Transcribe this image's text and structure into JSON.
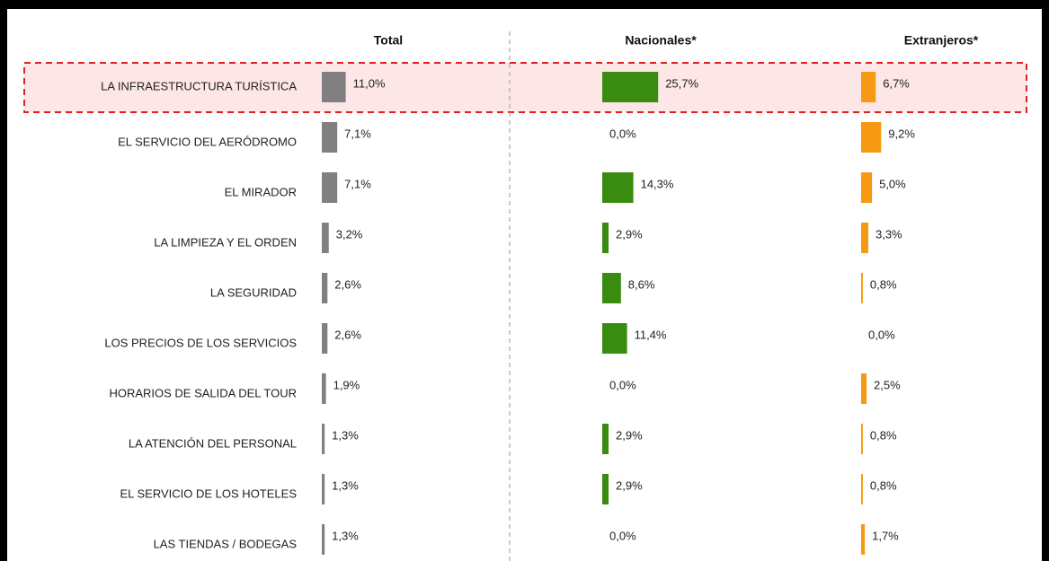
{
  "chart_data": {
    "type": "bar",
    "categories": [
      "LA INFRAESTRUCTURA TURÍSTICA",
      "EL SERVICIO DEL AERÓDROMO",
      "EL MIRADOR",
      "LA LIMPIEZA Y EL ORDEN",
      "LA SEGURIDAD",
      "LOS PRECIOS DE LOS SERVICIOS",
      "HORARIOS DE SALIDA DEL TOUR",
      "LA ATENCIÓN DEL PERSONAL",
      "EL SERVICIO DE LOS HOTELES",
      "LAS TIENDAS / BODEGAS"
    ],
    "series": [
      {
        "name": "Total",
        "color": "#808080",
        "values": [
          11.0,
          7.1,
          7.1,
          3.2,
          2.6,
          2.6,
          1.9,
          1.3,
          1.3,
          1.3
        ],
        "value_labels": [
          "11,0%",
          "7,1%",
          "7,1%",
          "3,2%",
          "2,6%",
          "2,6%",
          "1,9%",
          "1,3%",
          "1,3%",
          "1,3%"
        ]
      },
      {
        "name": "Nacionales*",
        "color": "#3a8c10",
        "values": [
          25.7,
          0.0,
          14.3,
          2.9,
          8.6,
          11.4,
          0.0,
          2.9,
          2.9,
          0.0
        ],
        "value_labels": [
          "25,7%",
          "0,0%",
          "14,3%",
          "2,9%",
          "8,6%",
          "11,4%",
          "0,0%",
          "2,9%",
          "2,9%",
          "0,0%"
        ]
      },
      {
        "name": "Extranjeros*",
        "color": "#f59a12",
        "values": [
          6.7,
          9.2,
          5.0,
          3.3,
          0.8,
          0.0,
          2.5,
          0.8,
          0.8,
          1.7
        ],
        "value_labels": [
          "6,7%",
          "9,2%",
          "5,0%",
          "3,3%",
          "0,8%",
          "0,0%",
          "2,5%",
          "0,8%",
          "0,8%",
          "1,7%"
        ]
      }
    ]
  }
}
